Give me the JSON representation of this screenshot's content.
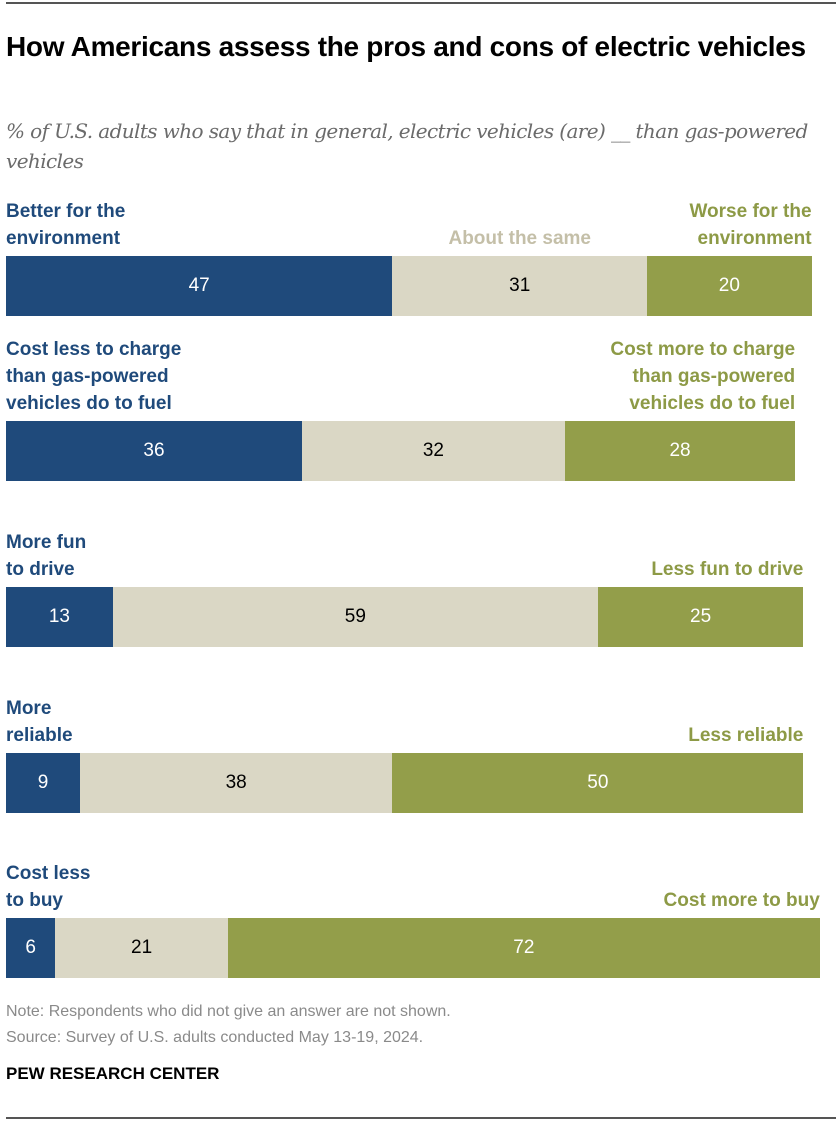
{
  "title": "How Americans assess the pros and cons of electric vehicles",
  "subtitle": "% of U.S. adults who say that in general, electric vehicles (are) __ than gas-powered vehicles",
  "colors": {
    "positive": "#1f4a7b",
    "same": "#dad7c5",
    "negative": "#939e4a"
  },
  "chart_data": {
    "type": "bar",
    "orientation": "horizontal-stacked",
    "title": "How Americans assess the pros and cons of electric vehicles",
    "subtitle": "% of U.S. adults who say that in general, electric vehicles (are) __ than gas-powered vehicles",
    "series": [
      {
        "name": "positive",
        "values": [
          47,
          36,
          13,
          9,
          6
        ]
      },
      {
        "name": "About the same",
        "values": [
          31,
          32,
          59,
          38,
          21
        ]
      },
      {
        "name": "negative",
        "values": [
          20,
          28,
          25,
          50,
          72
        ]
      }
    ],
    "rows": [
      {
        "left_label": "Better for the environment",
        "mid_label": "About the same",
        "right_label": "Worse for the environment",
        "values": [
          47,
          31,
          20
        ]
      },
      {
        "left_label": "Cost less to charge than gas-powered vehicles do to fuel",
        "mid_label": "",
        "right_label": "Cost more to charge than gas-powered vehicles do to fuel",
        "values": [
          36,
          32,
          28
        ]
      },
      {
        "left_label": "More fun to drive",
        "mid_label": "",
        "right_label": "Less fun to drive",
        "values": [
          13,
          59,
          25
        ]
      },
      {
        "left_label": "More reliable",
        "mid_label": "",
        "right_label": "Less reliable",
        "values": [
          9,
          38,
          50
        ]
      },
      {
        "left_label": "Cost less to buy",
        "mid_label": "",
        "right_label": "Cost more to buy",
        "values": [
          6,
          21,
          72
        ]
      }
    ],
    "xlim": [
      0,
      100
    ],
    "grid": false
  },
  "rows_display": [
    {
      "left": [
        "Better for the",
        "environment"
      ],
      "mid": "About the same",
      "right": [
        "Worse for the",
        "environment"
      ]
    },
    {
      "left": [
        "Cost less to charge",
        "than gas-powered",
        "vehicles do to fuel"
      ],
      "mid": "",
      "right": [
        "Cost more to charge",
        "than gas-powered",
        "vehicles do to fuel"
      ]
    },
    {
      "left": [
        "More fun",
        "to drive"
      ],
      "mid": "",
      "right": [
        "Less fun to drive"
      ]
    },
    {
      "left": [
        "More",
        "reliable"
      ],
      "mid": "",
      "right": [
        "Less reliable"
      ]
    },
    {
      "left": [
        "Cost less",
        "to buy"
      ],
      "mid": "",
      "right": [
        "Cost more to buy"
      ]
    }
  ],
  "footer": {
    "note": "Note: Respondents who did not give an answer are not shown.",
    "source": "Source: Survey of U.S. adults conducted May 13-19, 2024.",
    "brand": "PEW RESEARCH CENTER"
  }
}
